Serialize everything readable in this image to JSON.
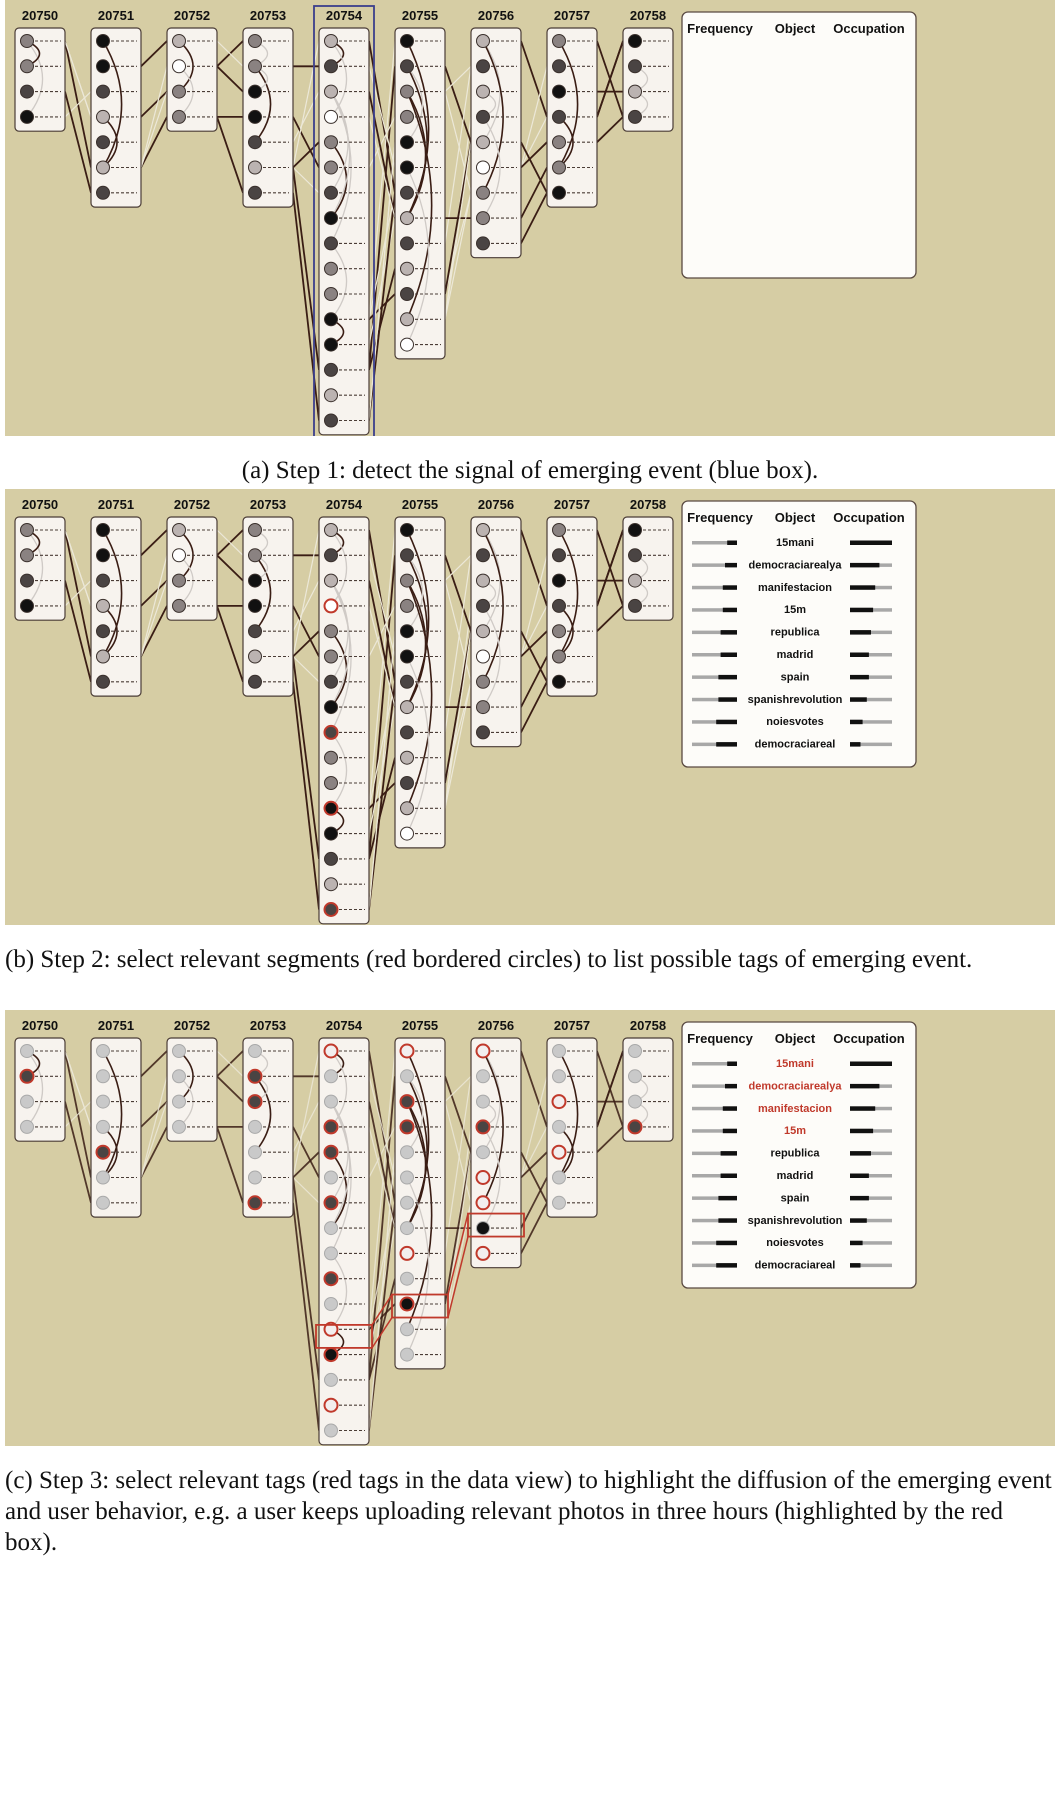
{
  "timeline": [
    "20750",
    "20751",
    "20752",
    "20753",
    "20754",
    "20755",
    "20756",
    "20757",
    "20758"
  ],
  "column_rows": [
    4,
    7,
    4,
    7,
    16,
    13,
    9,
    7,
    4
  ],
  "data_view": {
    "headers": [
      "Frequency",
      "Object",
      "Occupation"
    ],
    "tags": [
      {
        "name": "15mani",
        "freq": 0.8,
        "occ": 1.0
      },
      {
        "name": "democraciarealya",
        "freq": 0.75,
        "occ": 0.7
      },
      {
        "name": "manifestacion",
        "freq": 0.7,
        "occ": 0.6
      },
      {
        "name": "15m",
        "freq": 0.7,
        "occ": 0.55
      },
      {
        "name": "republica",
        "freq": 0.65,
        "occ": 0.5
      },
      {
        "name": "madrid",
        "freq": 0.65,
        "occ": 0.45
      },
      {
        "name": "spain",
        "freq": 0.6,
        "occ": 0.45
      },
      {
        "name": "spanishrevolution",
        "freq": 0.6,
        "occ": 0.4
      },
      {
        "name": "noiesvotes",
        "freq": 0.55,
        "occ": 0.3
      },
      {
        "name": "democraciareal",
        "freq": 0.55,
        "occ": 0.25
      }
    ]
  },
  "panels": [
    {
      "caption": "(a) Step 1: detect the signal of emerging event (blue box).",
      "show_tags": false,
      "blue_box_column": 4
    },
    {
      "caption": "(b) Step 2: select relevant segments (red bordered circles) to list possible tags of emerging event.",
      "show_tags": true,
      "highlight_tags": [],
      "red_segments": [
        [
          4,
          3
        ],
        [
          4,
          8
        ],
        [
          4,
          11
        ],
        [
          4,
          15
        ]
      ]
    },
    {
      "caption": "(c) Step 3: select relevant tags (red tags in the data view) to highlight the diffusion of the emerging event and user behavior, e.g. a user keeps uploading relevant photos in three hours (highlighted by the red box).",
      "show_tags": true,
      "highlight_tags": [
        0,
        1,
        2,
        3
      ]
    }
  ],
  "colors": {
    "background": "#d6cda4",
    "node_black": "#111111",
    "node_dark": "#4a4443",
    "node_mid": "#8a8281",
    "node_light": "#bbb3b1",
    "node_white": "#ffffff",
    "faded_node": "#c9c9c9",
    "highlight_red": "#c0392b",
    "blue_box": "#3b3f8c",
    "edge_dark": "#3a1d14"
  }
}
